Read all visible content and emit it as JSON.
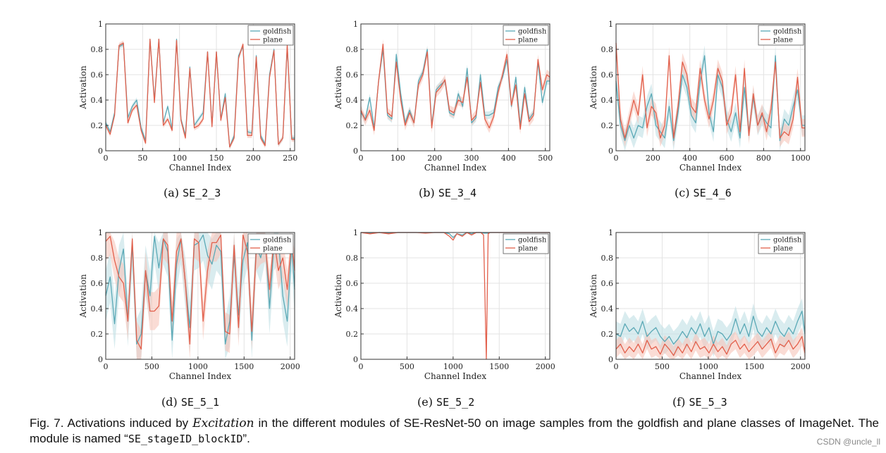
{
  "colors": {
    "goldfish": "#5ba9b6",
    "plane": "#e2604c",
    "goldfish_band": "#bfe0e5",
    "plane_band": "#f7c4b9",
    "grid": "#e3e3e3"
  },
  "chart_data": [
    {
      "id": "a",
      "type": "line",
      "subcaption": {
        "label": "(a)",
        "module": "SE_2_3"
      },
      "xlabel": "Channel Index",
      "ylabel": "Activation",
      "xlim": [
        0,
        256
      ],
      "ylim": [
        0,
        1
      ],
      "xticks": [
        0,
        50,
        100,
        150,
        200,
        250
      ],
      "yticks": [
        0,
        0.2,
        0.4,
        0.6,
        0.8,
        1
      ],
      "legend": [
        "goldfish",
        "plane"
      ],
      "legend_position": "top-right",
      "x": [
        0,
        6,
        12,
        18,
        24,
        30,
        36,
        42,
        48,
        54,
        60,
        66,
        72,
        78,
        84,
        90,
        96,
        102,
        108,
        114,
        120,
        126,
        132,
        138,
        144,
        150,
        156,
        162,
        168,
        174,
        180,
        186,
        192,
        198,
        204,
        210,
        216,
        222,
        228,
        234,
        240,
        246,
        252,
        256
      ],
      "series": [
        {
          "name": "goldfish",
          "band": 0.02,
          "values": [
            0.22,
            0.15,
            0.3,
            0.82,
            0.84,
            0.26,
            0.35,
            0.4,
            0.18,
            0.08,
            0.88,
            0.4,
            0.88,
            0.22,
            0.35,
            0.17,
            0.88,
            0.25,
            0.12,
            0.66,
            0.2,
            0.25,
            0.3,
            0.78,
            0.2,
            0.78,
            0.25,
            0.45,
            0.03,
            0.12,
            0.75,
            0.82,
            0.15,
            0.14,
            0.75,
            0.12,
            0.05,
            0.6,
            0.8,
            0.05,
            0.1,
            0.82,
            0.1,
            0.1
          ]
        },
        {
          "name": "plane",
          "band": 0.02,
          "values": [
            0.2,
            0.13,
            0.28,
            0.83,
            0.85,
            0.22,
            0.32,
            0.36,
            0.16,
            0.06,
            0.88,
            0.38,
            0.88,
            0.2,
            0.25,
            0.16,
            0.87,
            0.24,
            0.1,
            0.65,
            0.18,
            0.2,
            0.25,
            0.78,
            0.19,
            0.78,
            0.24,
            0.42,
            0.03,
            0.1,
            0.73,
            0.84,
            0.12,
            0.12,
            0.74,
            0.1,
            0.04,
            0.58,
            0.79,
            0.05,
            0.1,
            0.84,
            0.09,
            0.09
          ]
        }
      ]
    },
    {
      "id": "b",
      "type": "line",
      "subcaption": {
        "label": "(b)",
        "module": "SE_3_4"
      },
      "xlabel": "Channel Index",
      "ylabel": "Activation",
      "xlim": [
        0,
        512
      ],
      "ylim": [
        0,
        1
      ],
      "xticks": [
        0,
        100,
        200,
        300,
        400,
        500
      ],
      "yticks": [
        0,
        0.2,
        0.4,
        0.6,
        0.8,
        1
      ],
      "legend": [
        "goldfish",
        "plane"
      ],
      "legend_position": "top-right",
      "x": [
        0,
        12,
        24,
        36,
        48,
        60,
        72,
        84,
        96,
        108,
        120,
        132,
        144,
        156,
        168,
        180,
        192,
        204,
        216,
        228,
        240,
        252,
        264,
        276,
        288,
        300,
        312,
        324,
        336,
        348,
        360,
        372,
        384,
        396,
        408,
        420,
        432,
        444,
        456,
        468,
        480,
        492,
        504,
        512
      ],
      "series": [
        {
          "name": "goldfish",
          "band": 0.03,
          "values": [
            0.3,
            0.25,
            0.42,
            0.18,
            0.55,
            0.8,
            0.28,
            0.25,
            0.76,
            0.45,
            0.22,
            0.32,
            0.22,
            0.55,
            0.62,
            0.8,
            0.2,
            0.48,
            0.52,
            0.55,
            0.3,
            0.28,
            0.45,
            0.35,
            0.65,
            0.22,
            0.26,
            0.6,
            0.28,
            0.28,
            0.3,
            0.5,
            0.58,
            0.72,
            0.35,
            0.58,
            0.2,
            0.5,
            0.25,
            0.3,
            0.7,
            0.38,
            0.55,
            0.55
          ]
        },
        {
          "name": "plane",
          "band": 0.04,
          "values": [
            0.32,
            0.24,
            0.32,
            0.16,
            0.55,
            0.84,
            0.3,
            0.27,
            0.7,
            0.4,
            0.2,
            0.3,
            0.22,
            0.52,
            0.6,
            0.78,
            0.18,
            0.46,
            0.5,
            0.56,
            0.32,
            0.3,
            0.4,
            0.38,
            0.58,
            0.24,
            0.28,
            0.54,
            0.25,
            0.18,
            0.27,
            0.46,
            0.6,
            0.76,
            0.36,
            0.52,
            0.17,
            0.45,
            0.23,
            0.28,
            0.72,
            0.48,
            0.6,
            0.58
          ]
        }
      ]
    },
    {
      "id": "c",
      "type": "line",
      "subcaption": {
        "label": "(c)",
        "module": "SE_4_6"
      },
      "xlabel": "Channel Index",
      "ylabel": "Activation",
      "xlim": [
        0,
        1024
      ],
      "ylim": [
        0,
        1
      ],
      "xticks": [
        0,
        200,
        400,
        600,
        800,
        1000
      ],
      "yticks": [
        0,
        0.2,
        0.4,
        0.6,
        0.8,
        1
      ],
      "legend": [
        "goldfish",
        "plane"
      ],
      "legend_position": "top-right",
      "x": [
        0,
        24,
        48,
        72,
        96,
        120,
        144,
        168,
        192,
        216,
        240,
        264,
        288,
        312,
        336,
        360,
        384,
        408,
        432,
        456,
        480,
        504,
        528,
        552,
        576,
        600,
        624,
        648,
        672,
        696,
        720,
        744,
        768,
        792,
        816,
        840,
        864,
        888,
        912,
        936,
        960,
        984,
        1008,
        1024
      ],
      "series": [
        {
          "name": "goldfish",
          "band": 0.08,
          "values": [
            0.55,
            0.2,
            0.08,
            0.2,
            0.1,
            0.2,
            0.18,
            0.35,
            0.45,
            0.2,
            0.15,
            0.1,
            0.35,
            0.08,
            0.3,
            0.6,
            0.5,
            0.28,
            0.22,
            0.55,
            0.75,
            0.3,
            0.15,
            0.6,
            0.5,
            0.25,
            0.15,
            0.3,
            0.1,
            0.5,
            0.15,
            0.42,
            0.2,
            0.28,
            0.22,
            0.18,
            0.75,
            0.08,
            0.25,
            0.2,
            0.35,
            0.48,
            0.2,
            0.2
          ]
        },
        {
          "name": "plane",
          "band": 0.07,
          "values": [
            0.85,
            0.25,
            0.1,
            0.25,
            0.4,
            0.28,
            0.6,
            0.18,
            0.35,
            0.3,
            0.1,
            0.2,
            0.75,
            0.1,
            0.35,
            0.7,
            0.6,
            0.35,
            0.3,
            0.65,
            0.4,
            0.25,
            0.4,
            0.65,
            0.55,
            0.2,
            0.3,
            0.6,
            0.15,
            0.65,
            0.12,
            0.45,
            0.2,
            0.3,
            0.15,
            0.33,
            0.7,
            0.1,
            0.15,
            0.12,
            0.25,
            0.58,
            0.18,
            0.18
          ]
        }
      ]
    },
    {
      "id": "d",
      "type": "line",
      "subcaption": {
        "label": "(d)",
        "module": "SE_5_1"
      },
      "xlabel": "Channel Index",
      "ylabel": "Activation",
      "xlim": [
        0,
        2048
      ],
      "ylim": [
        0,
        1
      ],
      "xticks": [
        0,
        500,
        1000,
        1500,
        2000
      ],
      "yticks": [
        0,
        0.2,
        0.4,
        0.6,
        0.8,
        1
      ],
      "legend": [
        "goldfish",
        "plane"
      ],
      "legend_position": "top-right",
      "x": [
        0,
        48,
        96,
        144,
        192,
        240,
        288,
        336,
        384,
        432,
        480,
        528,
        576,
        624,
        672,
        720,
        768,
        816,
        864,
        912,
        960,
        1008,
        1056,
        1104,
        1152,
        1200,
        1248,
        1296,
        1344,
        1392,
        1440,
        1488,
        1536,
        1584,
        1632,
        1680,
        1728,
        1776,
        1824,
        1872,
        1920,
        1968,
        2016,
        2048
      ],
      "series": [
        {
          "name": "goldfish",
          "band": 0.2,
          "values": [
            0.5,
            0.65,
            0.28,
            0.7,
            0.87,
            0.3,
            0.9,
            0.12,
            0.2,
            0.7,
            0.5,
            0.97,
            0.72,
            0.95,
            0.85,
            0.15,
            0.75,
            0.95,
            0.6,
            0.25,
            0.9,
            0.92,
            0.98,
            0.82,
            0.75,
            0.9,
            0.85,
            0.12,
            0.3,
            0.82,
            0.35,
            0.78,
            0.92,
            0.15,
            0.9,
            0.8,
            0.97,
            0.4,
            0.9,
            0.95,
            0.5,
            0.3,
            0.9,
            0.55
          ]
        },
        {
          "name": "plane",
          "band": 0.15,
          "values": [
            0.93,
            0.97,
            0.78,
            0.65,
            0.6,
            0.3,
            0.95,
            0.15,
            0.08,
            0.7,
            0.38,
            0.38,
            0.42,
            0.95,
            0.9,
            0.3,
            0.85,
            0.95,
            0.6,
            0.12,
            0.95,
            0.92,
            0.3,
            0.7,
            0.92,
            0.92,
            0.98,
            0.22,
            0.2,
            0.9,
            0.25,
            0.98,
            0.85,
            0.22,
            0.85,
            0.9,
            0.92,
            0.55,
            0.95,
            0.7,
            0.8,
            0.55,
            0.95,
            0.7
          ]
        }
      ]
    },
    {
      "id": "e",
      "type": "line",
      "subcaption": {
        "label": "(e)",
        "module": "SE_5_2"
      },
      "xlabel": "Channel Index",
      "ylabel": "Activation",
      "xlim": [
        0,
        2048
      ],
      "ylim": [
        0,
        1
      ],
      "xticks": [
        0,
        500,
        1000,
        1500,
        2000
      ],
      "yticks": [
        0,
        0.2,
        0.4,
        0.6,
        0.8,
        1
      ],
      "legend": [
        "goldfish",
        "plane"
      ],
      "legend_position": "top-right",
      "x": [
        0,
        100,
        200,
        300,
        400,
        500,
        600,
        700,
        800,
        900,
        960,
        1000,
        1040,
        1100,
        1150,
        1200,
        1250,
        1300,
        1330,
        1360,
        1380,
        1400,
        1500,
        1700,
        1900,
        2048
      ],
      "series": [
        {
          "name": "goldfish",
          "band": 0.005,
          "values": [
            1,
            0.995,
            1,
            0.995,
            1,
            1,
            1,
            1,
            1,
            1,
            0.99,
            0.96,
            0.99,
            0.98,
            1,
            0.99,
            1,
            1,
            0.995,
            0.995,
            0.995,
            1,
            1,
            1,
            1,
            1
          ]
        },
        {
          "name": "plane",
          "band": 0.005,
          "values": [
            1,
            0.99,
            1,
            0.99,
            1,
            1,
            1,
            0.995,
            1,
            1,
            0.97,
            0.94,
            0.99,
            0.97,
            1,
            0.98,
            1,
            1,
            0.98,
            0.0,
            0.99,
            1,
            1,
            1,
            1,
            1
          ]
        }
      ]
    },
    {
      "id": "f",
      "type": "line",
      "subcaption": {
        "label": "(f)",
        "module": "SE_5_3"
      },
      "xlabel": "Channel Index",
      "ylabel": "Activation",
      "xlim": [
        0,
        2048
      ],
      "ylim": [
        0,
        1
      ],
      "xticks": [
        0,
        500,
        1000,
        1500,
        2000
      ],
      "yticks": [
        0,
        0.2,
        0.4,
        0.6,
        0.8,
        1
      ],
      "legend": [
        "goldfish",
        "plane"
      ],
      "legend_position": "top-right",
      "x": [
        0,
        48,
        96,
        144,
        192,
        240,
        288,
        336,
        384,
        432,
        480,
        528,
        576,
        624,
        672,
        720,
        768,
        816,
        864,
        912,
        960,
        1008,
        1056,
        1104,
        1152,
        1200,
        1248,
        1296,
        1344,
        1392,
        1440,
        1488,
        1536,
        1584,
        1632,
        1680,
        1728,
        1776,
        1824,
        1872,
        1920,
        1968,
        2016,
        2048
      ],
      "series": [
        {
          "name": "goldfish",
          "band": 0.1,
          "values": [
            0.2,
            0.18,
            0.28,
            0.22,
            0.25,
            0.2,
            0.3,
            0.18,
            0.22,
            0.25,
            0.18,
            0.14,
            0.18,
            0.12,
            0.16,
            0.22,
            0.17,
            0.25,
            0.2,
            0.28,
            0.18,
            0.25,
            0.12,
            0.22,
            0.2,
            0.15,
            0.2,
            0.32,
            0.2,
            0.28,
            0.18,
            0.34,
            0.22,
            0.18,
            0.25,
            0.2,
            0.3,
            0.22,
            0.18,
            0.25,
            0.2,
            0.3,
            0.38,
            0.2
          ]
        },
        {
          "name": "plane",
          "band": 0.07,
          "values": [
            0.08,
            0.12,
            0.05,
            0.1,
            0.06,
            0.12,
            0.05,
            0.15,
            0.08,
            0.1,
            0.04,
            0.12,
            0.08,
            0.03,
            0.1,
            0.05,
            0.12,
            0.06,
            0.14,
            0.08,
            0.1,
            0.05,
            0.12,
            0.06,
            0.1,
            0.04,
            0.12,
            0.15,
            0.08,
            0.12,
            0.06,
            0.1,
            0.14,
            0.08,
            0.12,
            0.16,
            0.05,
            0.12,
            0.1,
            0.15,
            0.08,
            0.12,
            0.18,
            0.05
          ]
        }
      ]
    }
  ],
  "caption": {
    "prefix": "Fig. 7. Activations induced by ",
    "emphasis": "Excitation",
    "middle": " in the different modules of SE-ResNet-50 on image samples from the goldfish and plane classes of ImageNet. The module is named “",
    "code": "SE_stageID_blockID",
    "suffix": "”."
  },
  "watermark": "CSDN @uncle_ll"
}
